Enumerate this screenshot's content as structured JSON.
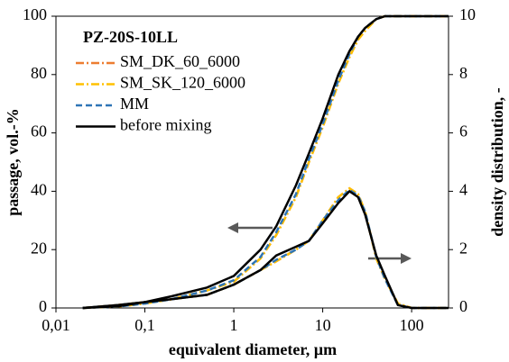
{
  "chart_data": {
    "type": "line",
    "annotation": "PZ-20S-10LL",
    "xlabel": "equivalent diameter, µm",
    "ylabel": "passage, vol.-%",
    "y2label": "density distribution, -",
    "log_x": true,
    "x": [
      0.02,
      0.05,
      0.1,
      0.2,
      0.5,
      1,
      2,
      3,
      5,
      7,
      10,
      15,
      20,
      25,
      30,
      40,
      50,
      70,
      100,
      260
    ],
    "series": [
      {
        "name": "SM_DK_60_6000",
        "color": "#ed7d31",
        "dash": "9 3 2 3",
        "values": [
          0,
          0.5,
          1.5,
          3,
          6,
          9,
          17,
          25,
          38,
          50,
          62,
          77,
          86,
          92,
          95,
          99,
          100,
          100,
          100,
          100
        ],
        "y2_values": [
          0,
          0.1,
          0.2,
          0.3,
          0.45,
          0.8,
          1.3,
          1.6,
          2.0,
          2.3,
          3.0,
          3.8,
          4.1,
          3.9,
          3.3,
          1.7,
          1.0,
          0.15,
          0,
          0
        ]
      },
      {
        "name": "SM_SK_120_6000",
        "color": "#ffc000",
        "dash": "9 3 2 3",
        "values": [
          0,
          0.5,
          1.5,
          3,
          6,
          9,
          17,
          25,
          38,
          50,
          62,
          77,
          86,
          92,
          95,
          99,
          100,
          100,
          100,
          100
        ],
        "y2_values": [
          0,
          0.1,
          0.2,
          0.3,
          0.45,
          0.8,
          1.3,
          1.6,
          2.0,
          2.3,
          3.0,
          3.8,
          4.1,
          3.9,
          3.3,
          1.7,
          1.0,
          0.15,
          0,
          0
        ]
      },
      {
        "name": "MM",
        "color": "#2e75b6",
        "dash": "7 4",
        "values": [
          0,
          0.5,
          1.5,
          3,
          6,
          9.5,
          17.5,
          26,
          39,
          51,
          63,
          78,
          87,
          93,
          96,
          99,
          100,
          100,
          100,
          100
        ],
        "y2_values": [
          0,
          0.1,
          0.2,
          0.3,
          0.45,
          0.8,
          1.3,
          1.65,
          2.0,
          2.3,
          3.0,
          3.7,
          4.05,
          3.85,
          3.3,
          1.75,
          1.0,
          0.1,
          0,
          0
        ]
      },
      {
        "name": "before mixing",
        "color": "#000000",
        "dash": "",
        "values": [
          0,
          0.6,
          2,
          4,
          7,
          11,
          20,
          28,
          42,
          53,
          65,
          80,
          88,
          93,
          96,
          99,
          100,
          100,
          100,
          100
        ],
        "y2_values": [
          0,
          0.1,
          0.2,
          0.3,
          0.45,
          0.8,
          1.3,
          1.8,
          2.1,
          2.3,
          2.9,
          3.6,
          4.0,
          3.8,
          3.2,
          1.8,
          1.1,
          0.1,
          0,
          0
        ]
      }
    ],
    "xlim": [
      0.01,
      260
    ],
    "xticks": [
      {
        "value": 0.01,
        "label": "0,01"
      },
      {
        "value": 0.1,
        "label": "0,1"
      },
      1,
      10,
      100
    ],
    "ylim": [
      0,
      100
    ],
    "yticks": [
      0,
      20,
      40,
      60,
      80,
      100
    ],
    "y2lim": [
      0,
      10
    ],
    "y2ticks": [
      0,
      2,
      4,
      6,
      8,
      10
    ]
  }
}
